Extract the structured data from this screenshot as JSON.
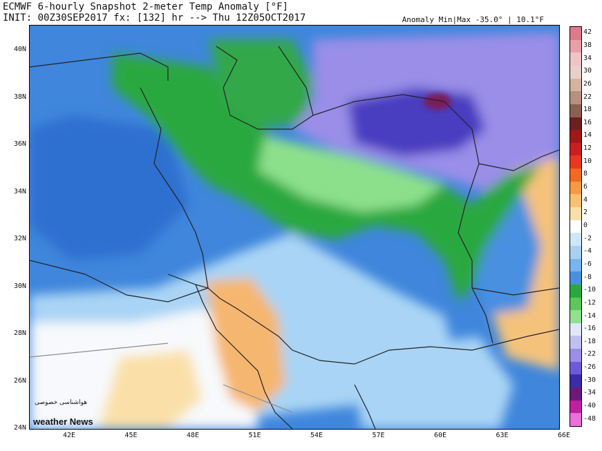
{
  "title_line1": "ECMWF 6-hourly Snapshot 2-meter Temp Anomaly [°F]",
  "title_line2": "INIT: 00Z30SEP2017 fx: [132] hr --> Thu 12Z05OCT2017",
  "anomaly_label": "Anomaly Min|Max -35.0° | 10.1°F",
  "lat_labels": [
    "40N",
    "38N",
    "36N",
    "34N",
    "32N",
    "30N",
    "28N",
    "26N",
    "24N"
  ],
  "lon_labels": [
    "42E",
    "45E",
    "48E",
    "51E",
    "54E",
    "57E",
    "60E",
    "63E",
    "66E"
  ],
  "colorbar": {
    "labels": [
      "42",
      "38",
      "34",
      "30",
      "26",
      "22",
      "18",
      "16",
      "14",
      "12",
      "10",
      "8",
      "6",
      "4",
      "2",
      "0",
      "-2",
      "-4",
      "-6",
      "-8",
      "-10",
      "-12",
      "-14",
      "-16",
      "-18",
      "-22",
      "-26",
      "-30",
      "-34",
      "-40",
      "-48"
    ],
    "colors": [
      "#e07a8a",
      "#e8a0a8",
      "#f0c4c4",
      "#e8d0c8",
      "#d4b4a0",
      "#b89080",
      "#8c6050",
      "#6a2020",
      "#a01818",
      "#c82020",
      "#e83820",
      "#f06a20",
      "#f59a40",
      "#f8c070",
      "#fae0a8",
      "#ffffff",
      "#cfe6f8",
      "#a8d0f4",
      "#78b4ee",
      "#4a90e0",
      "#2aa840",
      "#5cc85c",
      "#90e090",
      "#e0e8f8",
      "#c0c0f0",
      "#9a8ee8",
      "#6a5cd8",
      "#3c2ca8",
      "#6a1a7a",
      "#c020a0",
      "#e870d8"
    ]
  },
  "watermark_fa": "هواشناسی خصوصی",
  "watermark_en": "weather News",
  "map_colors": {
    "base_blue": "#3f86dc",
    "light_blue": "#a9d4f5",
    "white": "#f7f9fc",
    "orange_warm": "#f5b670",
    "orange_light": "#fae0a8",
    "green": "#2aa840",
    "light_green": "#8ce08c",
    "purple": "#9a8ee8",
    "deep_purple": "#4a3cc0",
    "maroon": "#7a1a5a",
    "borders": "#222222",
    "grey_border": "#8c8c8c"
  }
}
